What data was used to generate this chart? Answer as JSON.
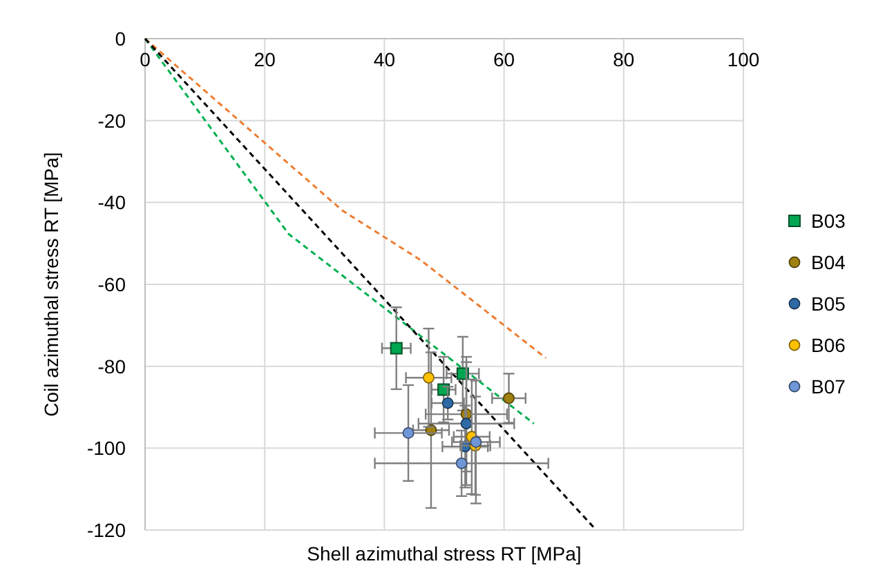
{
  "chart_data": {
    "type": "scatter",
    "xlabel": "Shell azimuthal stress RT [MPa]",
    "ylabel": "Coil azimuthal stress RT [MPa]",
    "xlim": [
      0,
      100
    ],
    "ylim": [
      -120,
      0
    ],
    "xticks": [
      0,
      20,
      40,
      60,
      80,
      100
    ],
    "yticks": [
      0,
      -20,
      -40,
      -60,
      -80,
      -100,
      -120
    ],
    "grid": true,
    "legend": "right",
    "series": [
      {
        "type": "line",
        "color": "#ed7d31",
        "x": [
          0,
          33,
          46,
          67
        ],
        "values": [
          0,
          -42,
          -54,
          -78
        ],
        "line_style": "dashed",
        "marker": "none"
      },
      {
        "type": "line",
        "color": "#00b050",
        "x": [
          0,
          24,
          65
        ],
        "values": [
          0,
          -47.7,
          -94
        ],
        "line_style": "dashed",
        "marker": "none"
      },
      {
        "type": "line",
        "color": "#000000",
        "x": [
          0,
          75.4
        ],
        "values": [
          0,
          -120
        ],
        "line_style": "dashed",
        "marker": "none"
      },
      {
        "name": "B03",
        "color": "#00a651",
        "marker": "square",
        "x": [
          42,
          53.1,
          49.9
        ],
        "values": [
          -75.6,
          -81.8,
          -85.7
        ],
        "xerrors": [
          2.4,
          2.7,
          2
        ],
        "errors": [
          10,
          9,
          8
        ]
      },
      {
        "name": "B04",
        "color": "#a08010",
        "marker": "circle",
        "x": [
          60.8,
          53.7,
          47.8
        ],
        "values": [
          -87.8,
          -91.7,
          -95.6
        ],
        "xerrors": [
          2.8,
          6.8,
          3
        ],
        "errors": [
          6,
          14,
          19
        ]
      },
      {
        "name": "B05",
        "color": "#2e6aa6",
        "marker": "circle",
        "x": [
          50.6,
          53.7,
          53.5
        ],
        "values": [
          -89,
          -94,
          -99.6
        ],
        "xerrors": [
          2.7,
          8,
          3.8
        ],
        "errors": [
          4,
          15,
          10
        ]
      },
      {
        "name": "B06",
        "color": "#ffc000",
        "marker": "circle",
        "x": [
          47.4,
          54.6,
          55.2
        ],
        "values": [
          -82.8,
          -97.2,
          -99.4
        ],
        "xerrors": [
          3.8,
          3,
          2.5
        ],
        "errors": [
          12,
          14,
          12
        ]
      },
      {
        "name": "B07",
        "color": "#6f96d6",
        "marker": "circle",
        "x": [
          44,
          55.3,
          52.9
        ],
        "values": [
          -96.3,
          -98.5,
          -103.7
        ],
        "xerrors": [
          5.6,
          4,
          14.5
        ],
        "errors": [
          11.7,
          15,
          8
        ]
      }
    ]
  }
}
